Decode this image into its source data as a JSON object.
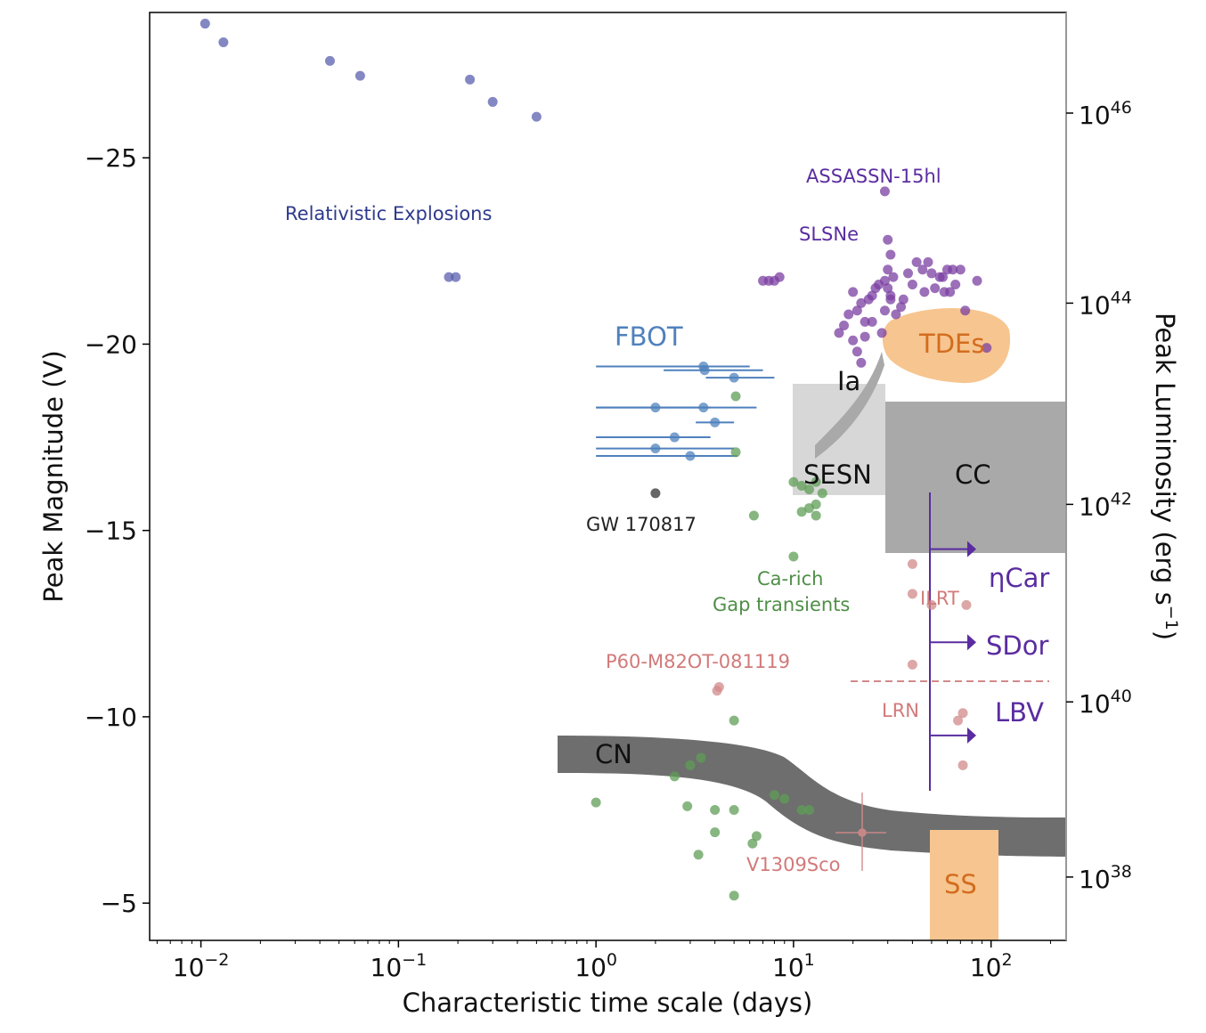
{
  "chart_data": {
    "type": "scatter",
    "xlabel": "Characteristic time scale (days)",
    "ylabel": "Peak Magnitude (V)",
    "y2label": "Peak Luminosity (erg s",
    "y2label_sup": "−1",
    "y2label_close": ")",
    "xscale": "log",
    "xlim": [
      0.0055,
      240
    ],
    "ylim": [
      -28.9,
      -4
    ],
    "y_inverted": true,
    "colors": {
      "relativistic": "#5a5fae",
      "slsne": "#7b3fa1",
      "fbot": "#4f81bd",
      "gap": "#5f9e57",
      "ilrt": "#d28a8a",
      "tde": "#f7c58f",
      "tde_text": "#d26d1f",
      "lbv": "#5a2ca0",
      "cn": "#6e6e6e",
      "cc": "#a9a9a9",
      "sesn": "#d7d7d7",
      "gw": "#555555",
      "ss": "#f7c58f",
      "axis": "#000000"
    },
    "x_ticks": [
      {
        "value": 0.01,
        "base": "10",
        "exp": "−2"
      },
      {
        "value": 0.1,
        "base": "10",
        "exp": "−1"
      },
      {
        "value": 1,
        "base": "10",
        "exp": "0"
      },
      {
        "value": 10,
        "base": "10",
        "exp": "1"
      },
      {
        "value": 100,
        "base": "10",
        "exp": "2"
      }
    ],
    "y_ticks": [
      {
        "value": -25,
        "label": "−25"
      },
      {
        "value": -20,
        "label": "−20"
      },
      {
        "value": -15,
        "label": "−15"
      },
      {
        "value": -10,
        "label": "−10"
      },
      {
        "value": -5,
        "label": "−5"
      }
    ],
    "y2_ticks": [
      {
        "mag": -26.2,
        "base": "10",
        "exp": "46"
      },
      {
        "mag": -21.1,
        "base": "10",
        "exp": "44"
      },
      {
        "mag": -15.7,
        "base": "10",
        "exp": "42"
      },
      {
        "mag": -10.4,
        "base": "10",
        "exp": "40"
      },
      {
        "mag": -5.7,
        "base": "10",
        "exp": "38"
      }
    ],
    "series": [
      {
        "name": "Relativistic Explosions",
        "color_key": "relativistic",
        "points": [
          [
            0.0105,
            -28.6
          ],
          [
            0.013,
            -28.1
          ],
          [
            0.045,
            -27.6
          ],
          [
            0.064,
            -27.2
          ],
          [
            0.23,
            -27.1
          ],
          [
            0.3,
            -26.5
          ],
          [
            0.5,
            -26.1
          ],
          [
            0.18,
            -21.8
          ],
          [
            0.195,
            -21.8
          ]
        ]
      },
      {
        "name": "SLSNe",
        "color_key": "slsne",
        "points": [
          [
            29,
            -24.1
          ],
          [
            30,
            -22.8
          ],
          [
            31,
            -22.4
          ],
          [
            30,
            -22.0
          ],
          [
            32,
            -21.8
          ],
          [
            29,
            -21.7
          ],
          [
            30,
            -21.5
          ],
          [
            31,
            -21.3
          ],
          [
            27,
            -21.6
          ],
          [
            26,
            -21.5
          ],
          [
            24,
            -21.2
          ],
          [
            22,
            -21.1
          ],
          [
            20,
            -21.4
          ],
          [
            21,
            -20.9
          ],
          [
            19,
            -20.8
          ],
          [
            23,
            -20.6
          ],
          [
            25,
            -20.6
          ],
          [
            18,
            -20.5
          ],
          [
            20,
            -20.1
          ],
          [
            21,
            -19.8
          ],
          [
            22,
            -19.5
          ],
          [
            17,
            -20.3
          ],
          [
            23,
            -20.2
          ],
          [
            28,
            -20.3
          ],
          [
            33,
            -20.8
          ],
          [
            36,
            -21.2
          ],
          [
            40,
            -21.6
          ],
          [
            42,
            -22.2
          ],
          [
            45,
            -22.0
          ],
          [
            50,
            -21.9
          ],
          [
            52,
            -21.5
          ],
          [
            55,
            -21.8
          ],
          [
            58,
            -21.4
          ],
          [
            60,
            -22.0
          ],
          [
            64,
            -22.0
          ],
          [
            66,
            -21.6
          ],
          [
            70,
            -22.0
          ],
          [
            74,
            -20.9
          ],
          [
            85,
            -21.7
          ],
          [
            95,
            -19.9
          ],
          [
            35,
            -21.0
          ],
          [
            46,
            -21.4
          ],
          [
            29,
            -20.9
          ],
          [
            31,
            -21.2
          ],
          [
            8.0,
            -21.7
          ],
          [
            8.5,
            -21.8
          ],
          [
            7.5,
            -21.7
          ],
          [
            7.0,
            -21.7
          ],
          [
            25,
            -21.3
          ],
          [
            38,
            -21.9
          ],
          [
            48,
            -22.2
          ],
          [
            57,
            -21.8
          ],
          [
            62,
            -21.4
          ]
        ]
      },
      {
        "name": "FBOT",
        "color_key": "fbot",
        "points": [
          [
            3.5,
            -19.4,
            1.0,
            6
          ],
          [
            3.55,
            -19.3,
            2.2,
            7.0
          ],
          [
            5.0,
            -19.1,
            3.6,
            8.0
          ],
          [
            2.0,
            -18.3,
            1.0,
            3.8
          ],
          [
            3.5,
            -18.3,
            1.0,
            6.5
          ],
          [
            4.0,
            -17.9,
            3.2,
            5.0
          ],
          [
            2.5,
            -17.5,
            1.0,
            3.8
          ],
          [
            2.0,
            -17.2,
            1.0,
            5.0
          ],
          [
            3.0,
            -17.0,
            1.0,
            5.2
          ]
        ]
      },
      {
        "name": "Gap transients",
        "color_key": "gap",
        "points": [
          [
            5.1,
            -18.6
          ],
          [
            5.1,
            -17.1
          ],
          [
            10.0,
            -16.3
          ],
          [
            11.0,
            -16.2
          ],
          [
            12.0,
            -16.1
          ],
          [
            13.0,
            -16.3
          ],
          [
            14.0,
            -16.0
          ],
          [
            12.0,
            -15.6
          ],
          [
            13.0,
            -15.7
          ],
          [
            11.0,
            -15.5
          ],
          [
            13.0,
            -15.4
          ],
          [
            6.3,
            -15.4
          ],
          [
            10.0,
            -14.3
          ],
          [
            5.0,
            -9.9
          ],
          [
            3.4,
            -8.9
          ],
          [
            3.0,
            -8.7
          ],
          [
            2.5,
            -8.4
          ],
          [
            8.0,
            -7.9
          ],
          [
            9.0,
            -7.8
          ],
          [
            11.0,
            -7.5
          ],
          [
            12.0,
            -7.5
          ],
          [
            1.0,
            -7.7
          ],
          [
            2.9,
            -7.6
          ],
          [
            4.0,
            -7.5
          ],
          [
            5.0,
            -7.5
          ],
          [
            4.0,
            -6.9
          ],
          [
            6.5,
            -6.8
          ],
          [
            6.2,
            -6.6
          ],
          [
            3.3,
            -6.3
          ],
          [
            5.0,
            -5.2
          ]
        ]
      },
      {
        "name": "ILRT / LRN",
        "color_key": "ilrt",
        "points": [
          [
            40,
            -14.1
          ],
          [
            40,
            -13.3
          ],
          [
            50,
            -13.0
          ],
          [
            75,
            -13.0
          ],
          [
            40,
            -11.4
          ],
          [
            4.1,
            -10.7
          ],
          [
            4.2,
            -10.8
          ],
          [
            72,
            -10.1
          ],
          [
            68,
            -9.9
          ],
          [
            72,
            -8.7
          ]
        ]
      },
      {
        "name": "GW 170817",
        "color_key": "gw",
        "points": [
          [
            2.0,
            -16.0
          ]
        ]
      }
    ],
    "regions": [
      {
        "name": "CC",
        "label": "CC"
      },
      {
        "name": "SESN",
        "label": "SESN"
      },
      {
        "name": "Ia",
        "label": "Ia"
      },
      {
        "name": "TDEs",
        "label": "TDEs"
      },
      {
        "name": "CN",
        "label": "CN"
      },
      {
        "name": "SS",
        "label": "SS"
      }
    ],
    "lbv_markers": [
      {
        "mag": -14.5,
        "label": "ηCar"
      },
      {
        "mag": -12.0,
        "label": "SDor"
      },
      {
        "mag": -9.5,
        "label": "LBV"
      }
    ],
    "annotations": {
      "relativistic": "Relativistic Explosions",
      "assassn": "ASSASSN-15hl",
      "slsne": "SLSNe",
      "fbot": "FBOT",
      "gw": "GW 170817",
      "ca_rich": "Ca-rich",
      "gap": "Gap transients",
      "ilrt": "ILRT",
      "p60": "P60-M82OT-081119",
      "lrn": "LRN",
      "v1309": "V1309Sco"
    }
  }
}
